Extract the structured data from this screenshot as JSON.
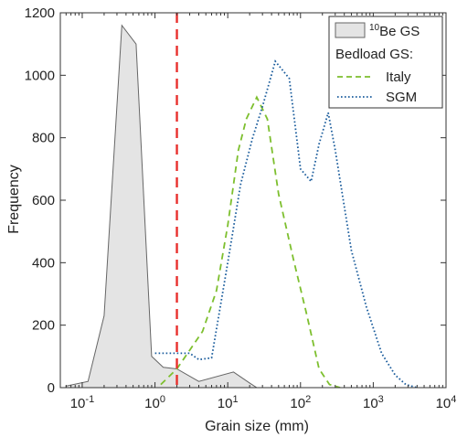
{
  "chart_data": {
    "type": "area",
    "title": "",
    "xlabel": "Grain size (mm)",
    "ylabel": "Frequency",
    "xscale": "log",
    "xlim": [
      0.05,
      10000
    ],
    "ylim": [
      0,
      1200
    ],
    "grid": false,
    "legend_position": "top-right",
    "x_tick_labels": [
      {
        "value": 0.1,
        "base": "10",
        "exp": "-1"
      },
      {
        "value": 1,
        "base": "10",
        "exp": "0"
      },
      {
        "value": 10,
        "base": "10",
        "exp": "1"
      },
      {
        "value": 100,
        "base": "10",
        "exp": "2"
      },
      {
        "value": 1000,
        "base": "10",
        "exp": "3"
      },
      {
        "value": 10000,
        "base": "10",
        "exp": "4"
      }
    ],
    "y_ticks": [
      0,
      200,
      400,
      600,
      800,
      1000,
      1200
    ],
    "reference_line": {
      "x": 2,
      "color": "#e8302d",
      "style": "dashed"
    },
    "legend": {
      "filled_label_sup": "10",
      "filled_label": "Be GS",
      "group_heading": "Bedload GS:"
    },
    "series": [
      {
        "name": "Be GS",
        "style": "filled",
        "fill": "#e4e4e4",
        "stroke": "#666666",
        "x": [
          0.06,
          0.12,
          0.2,
          0.35,
          0.55,
          0.9,
          1.3,
          2.0,
          4.0,
          12.0,
          20.0,
          25.0
        ],
        "y": [
          5,
          20,
          230,
          1160,
          1100,
          100,
          65,
          60,
          20,
          50,
          15,
          0
        ]
      },
      {
        "name": "Italy",
        "style": "dashed",
        "color": "#7dbf2e",
        "x": [
          1.2,
          2.0,
          3.0,
          4.5,
          7.0,
          10.0,
          14.0,
          18.0,
          25.0,
          35.0,
          50.0,
          80.0,
          120.0,
          180.0,
          250.0,
          350.0
        ],
        "y": [
          10,
          60,
          120,
          180,
          310,
          520,
          760,
          860,
          930,
          860,
          620,
          410,
          240,
          60,
          10,
          0
        ]
      },
      {
        "name": "SGM",
        "style": "dotted",
        "color": "#1a5c9c",
        "x": [
          1.0,
          2.0,
          3.0,
          4.0,
          6.0,
          10.0,
          15.0,
          22.0,
          30.0,
          45.0,
          70.0,
          100.0,
          140.0,
          180.0,
          240.0,
          300.0,
          500.0,
          800.0,
          1300.0,
          2000.0,
          2800.0,
          4000.0
        ],
        "y": [
          110,
          110,
          110,
          90,
          95,
          400,
          650,
          800,
          900,
          1045,
          990,
          700,
          660,
          780,
          880,
          760,
          440,
          260,
          110,
          40,
          10,
          0
        ]
      }
    ]
  }
}
